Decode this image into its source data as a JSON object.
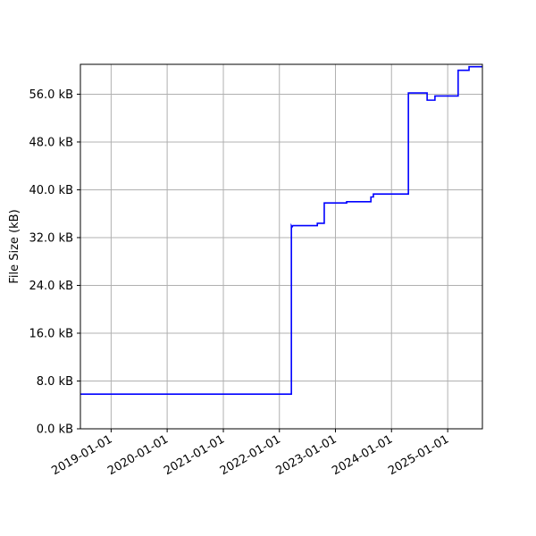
{
  "chart_data": {
    "type": "line",
    "title": "",
    "xlabel": "",
    "ylabel": "File Size (kB)",
    "x_ticks": [
      "2019-01-01",
      "2020-01-01",
      "2021-01-01",
      "2022-01-01",
      "2023-01-01",
      "2024-01-01",
      "2025-01-01"
    ],
    "y_ticks": [
      "0.0 kB",
      "8.0 kB",
      "16.0 kB",
      "24.0 kB",
      "32.0 kB",
      "40.0 kB",
      "48.0 kB",
      "56.0 kB"
    ],
    "y_tick_values": [
      0,
      8,
      16,
      24,
      32,
      40,
      48,
      56
    ],
    "xlim": [
      "2018-06-15",
      "2025-08-15"
    ],
    "ylim": [
      0,
      61
    ],
    "grid": true,
    "line_color": "#0000ff",
    "series": [
      {
        "step": "post",
        "points": [
          [
            "2018-06-15",
            5.8
          ],
          [
            "2022-03-20",
            5.8
          ],
          [
            "2022-03-20",
            34.0
          ],
          [
            "2022-03-25",
            33.8
          ],
          [
            "2022-03-30",
            34.0
          ],
          [
            "2022-09-05",
            34.0
          ],
          [
            "2022-09-05",
            34.4
          ],
          [
            "2022-10-20",
            34.4
          ],
          [
            "2022-10-20",
            37.8
          ],
          [
            "2023-03-15",
            37.8
          ],
          [
            "2023-03-15",
            38.0
          ],
          [
            "2023-08-20",
            38.0
          ],
          [
            "2023-08-20",
            38.8
          ],
          [
            "2023-09-05",
            38.8
          ],
          [
            "2023-09-05",
            39.3
          ],
          [
            "2024-04-20",
            39.3
          ],
          [
            "2024-04-20",
            56.2
          ],
          [
            "2024-08-20",
            56.2
          ],
          [
            "2024-08-20",
            55.0
          ],
          [
            "2024-10-10",
            55.0
          ],
          [
            "2024-10-10",
            55.7
          ],
          [
            "2025-03-10",
            55.7
          ],
          [
            "2025-03-10",
            60.0
          ],
          [
            "2025-05-20",
            60.0
          ],
          [
            "2025-05-20",
            60.6
          ],
          [
            "2025-08-15",
            60.6
          ]
        ]
      }
    ]
  }
}
